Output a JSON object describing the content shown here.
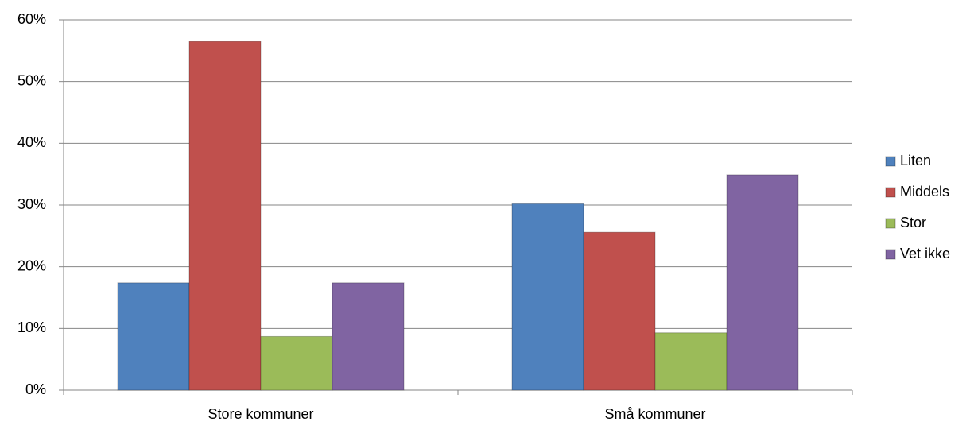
{
  "chart_data": {
    "type": "bar",
    "categories": [
      "Store kommuner",
      "Små kommuner"
    ],
    "series": [
      {
        "name": "Liten",
        "color": "#4f81bd",
        "values": [
          17.4,
          30.2
        ]
      },
      {
        "name": "Middels",
        "color": "#c0504d",
        "values": [
          56.5,
          25.6
        ]
      },
      {
        "name": "Stor",
        "color": "#9bbb59",
        "values": [
          8.7,
          9.3
        ]
      },
      {
        "name": "Vet ikke",
        "color": "#8064a2",
        "values": [
          17.4,
          34.9
        ]
      }
    ],
    "ylim": [
      0,
      60
    ],
    "yticks": [
      {
        "value": 0,
        "label": "0%"
      },
      {
        "value": 10,
        "label": "10%"
      },
      {
        "value": 20,
        "label": "20%"
      },
      {
        "value": 30,
        "label": "30%"
      },
      {
        "value": 40,
        "label": "40%"
      },
      {
        "value": 50,
        "label": "50%"
      },
      {
        "value": 60,
        "label": "60%"
      }
    ],
    "grid": true,
    "legend": "right"
  }
}
